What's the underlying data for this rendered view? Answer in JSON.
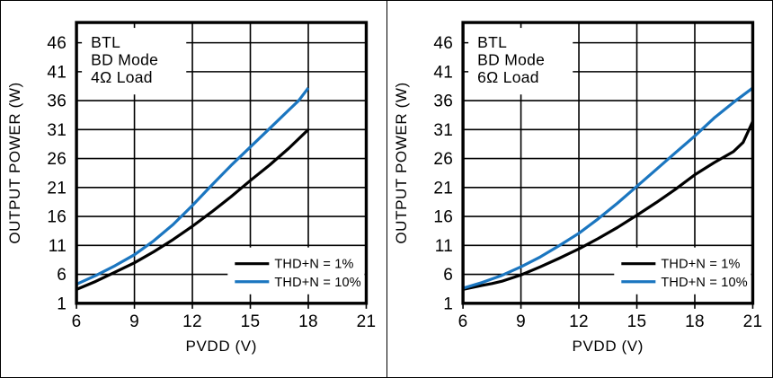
{
  "figure": {
    "background": "#ffffff",
    "border_color": "#000000",
    "grid_color": "#000000",
    "text_color": "#000000",
    "accent_blue": "#1b76c0"
  },
  "chart_data": [
    {
      "id": "4ohm",
      "type": "line",
      "title_lines": [
        "BTL",
        "BD Mode",
        "4Ω Load"
      ],
      "xlabel": "PVDD (V)",
      "ylabel": "OUTPUT POWER (W)",
      "xlim": [
        6,
        21
      ],
      "ylim": [
        1,
        49.5
      ],
      "x_ticks": [
        6,
        9,
        12,
        15,
        18,
        21
      ],
      "y_ticks": [
        1,
        6,
        11,
        16,
        21,
        26,
        31,
        36,
        41,
        46
      ],
      "grid": true,
      "legend_position": "lower-right",
      "legend": [
        "THD+N = 1%",
        "THD+N = 10%"
      ],
      "series": [
        {
          "name": "THD+N = 1%",
          "color": "#000000",
          "x": [
            6,
            7,
            8,
            9,
            10,
            11,
            12,
            13,
            14,
            15,
            16,
            17,
            18
          ],
          "y": [
            3.4,
            4.8,
            6.4,
            8.0,
            9.9,
            12.0,
            14.3,
            16.8,
            19.4,
            22.2,
            24.9,
            27.8,
            31.0
          ]
        },
        {
          "name": "THD+N = 10%",
          "color": "#1b76c0",
          "x": [
            6,
            7,
            8,
            9,
            10,
            11,
            12,
            13,
            14,
            15,
            16,
            17,
            17.5,
            18
          ],
          "y": [
            4.3,
            5.8,
            7.5,
            9.4,
            11.8,
            14.6,
            17.9,
            21.4,
            24.8,
            28.0,
            31.2,
            34.4,
            36.0,
            38.2
          ]
        }
      ]
    },
    {
      "id": "6ohm",
      "type": "line",
      "title_lines": [
        "BTL",
        "BD Mode",
        "6Ω Load"
      ],
      "xlabel": "PVDD (V)",
      "ylabel": "OUTPUT POWER (W)",
      "xlim": [
        6,
        21
      ],
      "ylim": [
        1,
        49.5
      ],
      "x_ticks": [
        6,
        9,
        12,
        15,
        18,
        21
      ],
      "y_ticks": [
        1,
        6,
        11,
        16,
        21,
        26,
        31,
        36,
        41,
        46
      ],
      "grid": true,
      "legend_position": "lower-right",
      "legend": [
        "THD+N = 1%",
        "THD+N = 10%"
      ],
      "series": [
        {
          "name": "THD+N = 1%",
          "color": "#000000",
          "x": [
            6,
            7,
            7.5,
            8,
            9,
            10,
            11,
            12,
            13,
            14,
            15,
            16,
            17,
            18,
            19,
            20,
            20.5,
            21
          ],
          "y": [
            3.4,
            4.1,
            4.4,
            4.8,
            5.9,
            7.3,
            8.8,
            10.4,
            12.2,
            14.1,
            16.2,
            18.4,
            20.7,
            23.2,
            25.3,
            27.2,
            28.8,
            32.4
          ]
        },
        {
          "name": "THD+N = 10%",
          "color": "#1b76c0",
          "x": [
            6,
            7,
            8,
            9,
            10,
            11,
            12,
            13,
            14,
            15,
            16,
            17,
            18,
            19,
            20,
            21
          ],
          "y": [
            3.6,
            4.6,
            5.8,
            7.3,
            9.0,
            11.0,
            13.1,
            15.6,
            18.3,
            21.2,
            24.1,
            27.0,
            29.9,
            33.0,
            35.7,
            38.2
          ]
        }
      ]
    }
  ]
}
